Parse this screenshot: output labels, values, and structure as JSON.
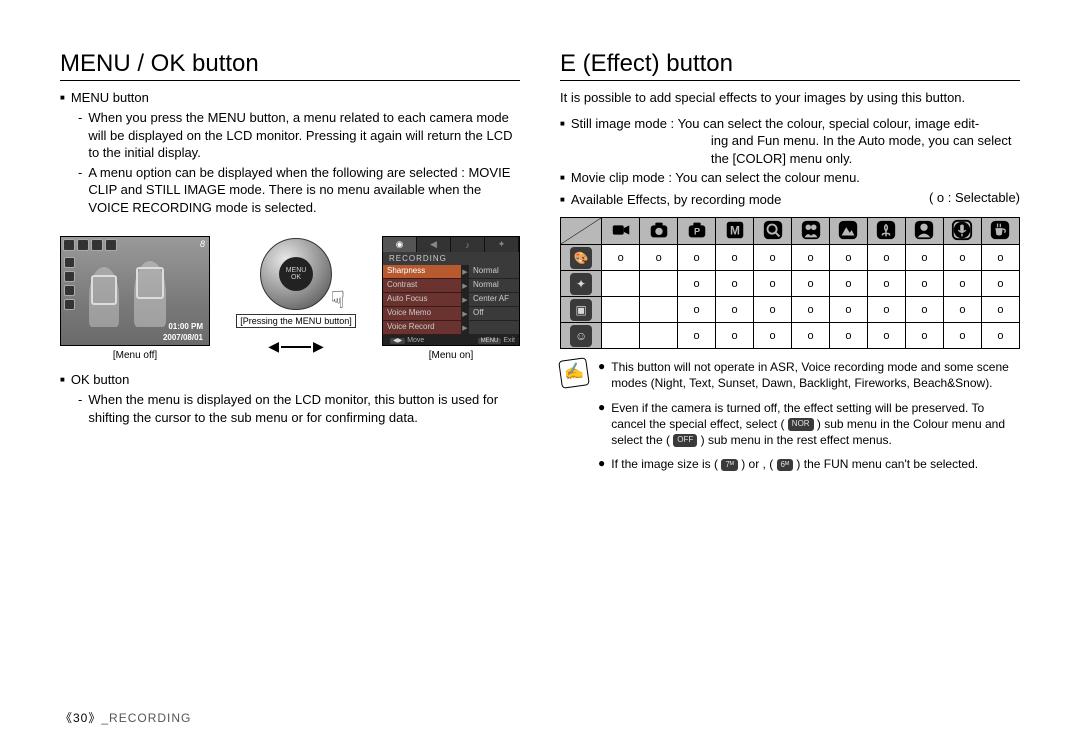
{
  "left": {
    "heading": "MENU / OK button",
    "menu_button_label": "MENU button",
    "menu_desc1": "When you press the MENU button, a menu related to each camera mode will be displayed on the LCD monitor. Pressing it again will return the LCD to the initial display.",
    "menu_desc2": "A menu option can be displayed when the following are selected : MOVIE CLIP and STILL IMAGE mode. There is no menu available when the VOICE RECORDING mode is selected.",
    "ok_button_label": "OK button",
    "ok_desc": "When the menu is displayed on the LCD monitor, this button is used for shifting the cursor to the sub menu or for confirming data.",
    "fig": {
      "off_caption": "[Menu off]",
      "on_caption": "[Menu on]",
      "press_caption": "[Pressing the MENU button]",
      "wheel_line1": "MENU",
      "wheel_line2": "OK",
      "lcd_off": {
        "rightnum": "8",
        "time": "01:00 PM",
        "date": "2007/08/01"
      },
      "lcd_on": {
        "tab1": "◉",
        "tab2": "◀",
        "tab3": "♪",
        "tab4": "✦",
        "section": "RECORDING",
        "rows": [
          {
            "label": "Sharpness",
            "value": "Normal",
            "sel": true
          },
          {
            "label": "Contrast",
            "value": "Normal"
          },
          {
            "label": "Auto Focus",
            "value": "Center AF"
          },
          {
            "label": "Voice Memo",
            "value": "Off"
          },
          {
            "label": "Voice Record",
            "value": ""
          }
        ],
        "footer_move": "Move",
        "footer_exit": "Exit",
        "footer_movebtn": "◀▶",
        "footer_exitbtn": "MENU"
      }
    }
  },
  "right": {
    "heading": "E (Effect) button",
    "intro": "It is possible to add special effects to your images by using this button.",
    "still_label": "Still image mode :",
    "still_text1": "You can select the colour, special colour, image edit-",
    "still_text2": "ing and Fun menu. In the Auto mode, you can  select the [COLOR] menu only.",
    "movie_label": "Movie clip mode :",
    "movie_text": "You can select the colour menu.",
    "avail_label": "Available Effects, by recording mode",
    "selectable": "( o : Selectable)",
    "table": {
      "col_icons": [
        "video",
        "camera",
        "camera-p",
        "M",
        "magnify",
        "children",
        "mountain",
        "tulip",
        "head",
        "mic",
        "cup"
      ],
      "row_icons": [
        "palette",
        "sparkle",
        "frame",
        "bubble"
      ],
      "cells": [
        [
          "o",
          "o",
          "o",
          "o",
          "o",
          "o",
          "o",
          "o",
          "o",
          "o",
          "o"
        ],
        [
          "",
          "",
          "o",
          "o",
          "o",
          "o",
          "o",
          "o",
          "o",
          "o",
          "o"
        ],
        [
          "",
          "",
          "o",
          "o",
          "o",
          "o",
          "o",
          "o",
          "o",
          "o",
          "o"
        ],
        [
          "",
          "",
          "o",
          "o",
          "o",
          "o",
          "o",
          "o",
          "o",
          "o",
          "o"
        ]
      ]
    },
    "notes": {
      "n1": "This button will not operate in ASR, Voice recording mode and some scene modes (Night, Text, Sunset, Dawn, Backlight, Fireworks, Beach&Snow).",
      "n2a": "Even if the camera is turned off, the effect setting will be preserved. To cancel the special effect, select (",
      "n2b": ") sub menu in the Colour menu and select the (",
      "n2c": ") sub menu in the rest effect menus.",
      "badge_nor": "NOR",
      "badge_off": "OFF",
      "n3a": "If the image size is (",
      "n3b": ") or , (",
      "n3c": ") the FUN menu can't be selected.",
      "badge_7": "7ᴹ",
      "badge_6": "6ᴹ"
    }
  },
  "footer": {
    "page": "《30》",
    "section": "_RECORDING"
  },
  "colors": {
    "header_gray": "#b8b8b8",
    "dark_badge": "#3a3a3a"
  }
}
